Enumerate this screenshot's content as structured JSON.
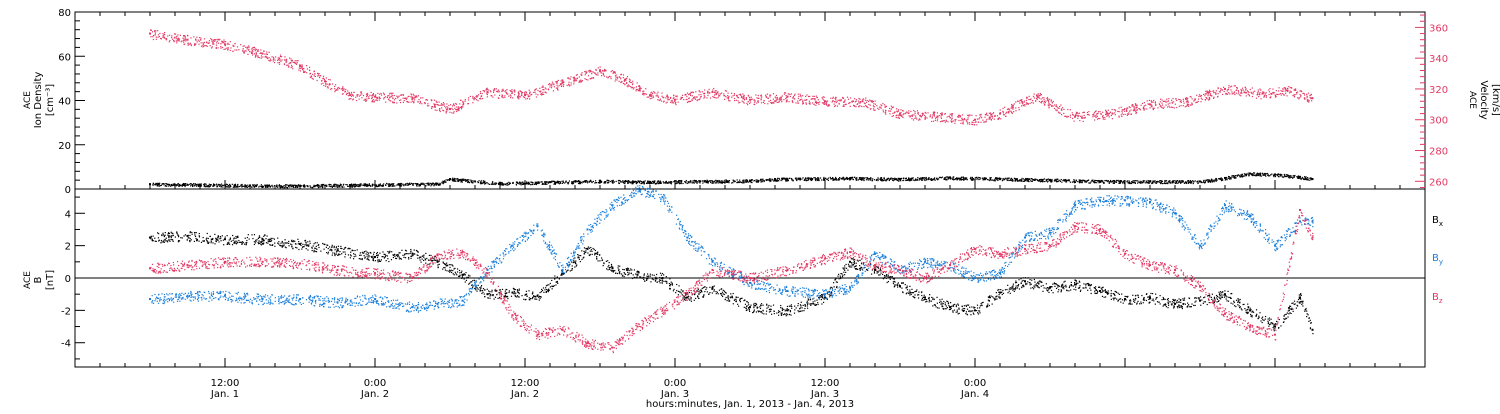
{
  "colors": {
    "black": "#000000",
    "blue": "#1a7fdb",
    "red": "#e23a64"
  },
  "chart_data": [
    {
      "type": "scatter",
      "panel": "top",
      "left_axis_label": [
        "ACE",
        "Ion Density",
        "[cm⁻³]"
      ],
      "right_axis_label": [
        "ACE",
        "Velocity",
        "[km/s]"
      ],
      "left_ylim": [
        0,
        80
      ],
      "left_ticks": [
        0,
        20,
        40,
        60,
        80
      ],
      "right_ylim": [
        255,
        370
      ],
      "right_ticks": [
        260,
        280,
        300,
        320,
        340,
        360
      ],
      "series": [
        {
          "axis": "right",
          "color": "red",
          "x": [
            6,
            9,
            12,
            15,
            18,
            20,
            22,
            24,
            27,
            30,
            33,
            36,
            39,
            42,
            44,
            46,
            48,
            51,
            54,
            57,
            60,
            63,
            66,
            69,
            72,
            74,
            75,
            77,
            80,
            83,
            86,
            89,
            92,
            95,
            97,
            99
          ],
          "y": [
            356,
            352,
            349,
            343,
            335,
            325,
            316,
            315,
            314,
            307,
            318,
            316,
            324,
            332,
            326,
            316,
            313,
            318,
            313,
            315,
            312,
            312,
            304,
            302,
            300,
            304,
            308,
            315,
            302,
            304,
            310,
            312,
            320,
            317,
            319,
            314
          ]
        },
        {
          "axis": "left",
          "color": "black",
          "x": [
            6,
            10,
            14,
            18,
            22,
            26,
            29,
            30,
            34,
            38,
            42,
            46,
            50,
            54,
            56,
            58,
            62,
            66,
            70,
            74,
            78,
            82,
            86,
            90,
            92,
            94,
            96,
            98,
            99
          ],
          "y": [
            2.2,
            2.0,
            1.6,
            1.5,
            1.8,
            2.2,
            2.4,
            4.5,
            2.6,
            3.1,
            3.6,
            3.2,
            3.5,
            3.8,
            4.5,
            4.7,
            4.9,
            4.5,
            5.1,
            4.6,
            4.1,
            3.5,
            3.4,
            3.4,
            5.0,
            7.0,
            6.5,
            5.5,
            4.5
          ]
        }
      ]
    },
    {
      "type": "scatter",
      "panel": "bottom",
      "left_axis_label": [
        "ACE",
        "B",
        "[nT]"
      ],
      "ylim": [
        -5.5,
        5.5
      ],
      "ticks": [
        -4,
        -2,
        0,
        2,
        4
      ],
      "zero_line": true,
      "legend": [
        {
          "label": "B",
          "sub": "x",
          "color": "black"
        },
        {
          "label": "B",
          "sub": "y",
          "color": "blue"
        },
        {
          "label": "B",
          "sub": "z",
          "color": "red"
        }
      ],
      "series": [
        {
          "name": "Bx",
          "color": "black",
          "x": [
            6,
            9,
            12,
            15,
            18,
            21,
            24,
            27,
            29,
            31,
            33,
            35,
            37,
            39,
            41,
            43,
            45,
            47,
            49,
            51,
            54,
            57,
            60,
            62,
            64,
            66,
            68,
            70,
            72,
            74,
            76,
            78,
            80,
            82,
            84,
            86,
            88,
            90,
            92,
            94,
            96,
            98,
            99
          ],
          "y": [
            2.5,
            2.6,
            2.4,
            2.4,
            2.1,
            1.7,
            1.3,
            1.5,
            1.0,
            0.2,
            -1.0,
            -0.9,
            -1.1,
            0.3,
            1.8,
            0.6,
            0.2,
            0.0,
            -1.2,
            -0.6,
            -1.8,
            -2.0,
            -1.2,
            1.0,
            0.5,
            -0.5,
            -1.2,
            -1.8,
            -2.0,
            -0.9,
            -0.2,
            -0.6,
            -0.4,
            -0.8,
            -1.3,
            -1.2,
            -1.6,
            -1.4,
            -1.0,
            -2.0,
            -3.0,
            -1.2,
            -3.2
          ]
        },
        {
          "name": "By",
          "color": "blue",
          "x": [
            6,
            9,
            12,
            15,
            18,
            21,
            24,
            27,
            29,
            31,
            33,
            35,
            37,
            39,
            41,
            43,
            45,
            47,
            49,
            51,
            54,
            57,
            60,
            62,
            64,
            66,
            68,
            70,
            72,
            74,
            76,
            78,
            80,
            82,
            84,
            86,
            88,
            90,
            92,
            94,
            96,
            98,
            99
          ],
          "y": [
            -1.3,
            -1.1,
            -1.1,
            -1.3,
            -1.3,
            -1.5,
            -1.3,
            -1.8,
            -1.6,
            -1.4,
            0.5,
            2.0,
            3.2,
            0.5,
            3.0,
            4.5,
            5.5,
            5.0,
            2.5,
            1.0,
            -0.3,
            -0.8,
            -1.0,
            -0.6,
            1.5,
            0.5,
            1.0,
            0.8,
            0.0,
            0.3,
            2.5,
            2.8,
            4.5,
            4.8,
            4.8,
            4.7,
            4.0,
            2.0,
            4.5,
            3.8,
            2.0,
            3.5,
            3.5
          ]
        },
        {
          "name": "Bz",
          "color": "red",
          "x": [
            6,
            9,
            12,
            15,
            18,
            21,
            24,
            27,
            29,
            31,
            33,
            35,
            37,
            39,
            41,
            43,
            45,
            47,
            49,
            51,
            54,
            57,
            60,
            62,
            64,
            66,
            68,
            70,
            72,
            74,
            76,
            78,
            80,
            82,
            84,
            86,
            88,
            90,
            92,
            94,
            96,
            98,
            99
          ],
          "y": [
            0.6,
            0.8,
            1.0,
            1.0,
            0.9,
            0.5,
            0.3,
            0.0,
            1.4,
            1.6,
            0.3,
            -2.3,
            -3.5,
            -3.2,
            -4.0,
            -4.3,
            -3.0,
            -2.0,
            -1.0,
            0.5,
            0.0,
            0.5,
            1.2,
            1.6,
            0.8,
            0.5,
            0.0,
            0.8,
            1.8,
            1.5,
            1.8,
            2.0,
            3.2,
            3.0,
            1.5,
            0.8,
            0.5,
            -0.5,
            -2.2,
            -3.0,
            -3.5,
            4.2,
            2.5
          ]
        }
      ]
    }
  ],
  "x_axis": {
    "xlim_hours": [
      0,
      108
    ],
    "tick_labels": [
      {
        "time": "12:00",
        "day": "Jan. 1",
        "hour": 12
      },
      {
        "time": "0:00",
        "day": "Jan. 2",
        "hour": 24
      },
      {
        "time": "12:00",
        "day": "Jan. 2",
        "hour": 36
      },
      {
        "time": "0:00",
        "day": "Jan. 3",
        "hour": 48
      },
      {
        "time": "12:00",
        "day": "Jan. 3",
        "hour": 60
      },
      {
        "time": "0:00",
        "day": "Jan. 4",
        "hour": 72
      }
    ],
    "title": "hours:minutes, Jan. 1, 2013 - Jan. 4, 2013"
  }
}
